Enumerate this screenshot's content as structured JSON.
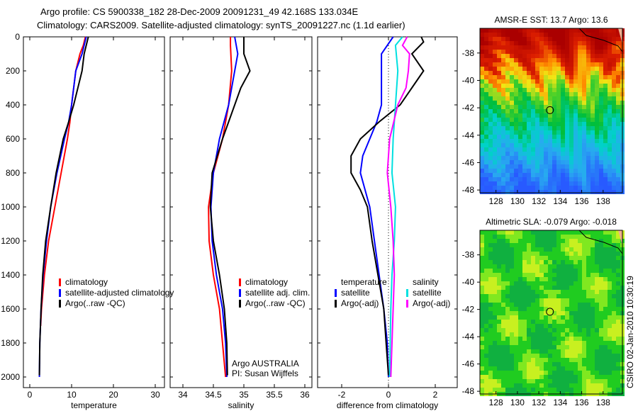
{
  "title_line1": "Argo profile: CS 5900338_182 28-Dec-2009 20091231_49 42.168S 133.034E",
  "title_line2": "Climatology: CARS2009. Satellite-adjusted climatology: synTS_20091227.nc (1.1d earlier)",
  "credit": "CSIRO 02-Jan-2010 10:30:19",
  "colors": {
    "climatology": "#ff0000",
    "satellite": "#0000ff",
    "argo": "#000000",
    "sal_satellite": "#00e0e0",
    "sal_argo": "#ff00ff"
  },
  "chart_data": [
    {
      "type": "line",
      "xlabel": "temperature",
      "ylabel": "depth",
      "xlim": [
        -2,
        32
      ],
      "ylim": [
        0,
        2050
      ],
      "xticks": [
        0,
        10,
        20,
        30
      ],
      "yticks": [
        0,
        200,
        400,
        600,
        800,
        1000,
        1200,
        1400,
        1600,
        1800,
        2000
      ],
      "legend": [
        "climatology",
        "satellite-adjusted climatology",
        "Argo(..raw -QC)"
      ],
      "series": [
        {
          "name": "climatology",
          "color": "#ff0000",
          "depth": [
            0,
            50,
            100,
            200,
            400,
            500,
            600,
            800,
            1000,
            1200,
            1400,
            1600,
            1700
          ],
          "values": [
            13.3,
            12.8,
            12,
            11,
            10,
            9.6,
            9,
            7.5,
            6,
            4.5,
            3.5,
            2.8,
            2.6
          ]
        },
        {
          "name": "satellite-adjusted climatology",
          "color": "#0000ff",
          "depth": [
            0,
            100,
            200,
            400,
            500,
            600,
            800,
            1000,
            1200,
            1400,
            1600,
            1800,
            2000
          ],
          "values": [
            13.5,
            12.5,
            11,
            10,
            9.3,
            8.3,
            6.5,
            5,
            4,
            3.2,
            2.7,
            2.4,
            2.3
          ]
        },
        {
          "name": "Argo(..raw -QC)",
          "color": "#000000",
          "depth": [
            0,
            50,
            100,
            200,
            300,
            400,
            500,
            600,
            800,
            1000,
            1200,
            1400,
            1600,
            1800,
            1990
          ],
          "values": [
            14,
            13.5,
            13,
            12.5,
            11.5,
            10.5,
            9.3,
            8,
            6.3,
            5,
            3.8,
            3.1,
            2.7,
            2.4,
            2.3
          ]
        }
      ]
    },
    {
      "type": "line",
      "xlabel": "salinity",
      "ylabel": "depth",
      "xlim": [
        33.8,
        36.1
      ],
      "ylim": [
        0,
        2050
      ],
      "xticks": [
        34,
        34.5,
        35,
        35.5,
        36
      ],
      "legend": [
        "climatology",
        "satellite adj. clim.",
        "Argo(..raw -QC)"
      ],
      "annotation": [
        "Argo AUSTRALIA",
        "PI: Susan Wijffels"
      ],
      "series": [
        {
          "name": "climatology",
          "color": "#ff0000",
          "depth": [
            0,
            50,
            200,
            400,
            600,
            800,
            1000,
            1200,
            1400,
            1600,
            1800,
            2000
          ],
          "values": [
            34.78,
            34.78,
            34.8,
            34.75,
            34.65,
            34.5,
            34.42,
            34.43,
            34.5,
            34.6,
            34.65,
            34.7
          ]
        },
        {
          "name": "satellite adj. clim.",
          "color": "#0000ff",
          "depth": [
            0,
            100,
            200,
            400,
            600,
            800,
            1000,
            1200,
            1400,
            1600,
            1800,
            2000
          ],
          "values": [
            34.85,
            34.9,
            34.85,
            34.75,
            34.6,
            34.5,
            34.46,
            34.48,
            34.55,
            34.65,
            34.7,
            34.72
          ]
        },
        {
          "name": "Argo(..raw -QC)",
          "color": "#000000",
          "depth": [
            0,
            100,
            200,
            300,
            400,
            500,
            600,
            800,
            1000,
            1200,
            1400,
            1600,
            1800,
            1990
          ],
          "values": [
            35,
            35,
            35.1,
            34.95,
            34.85,
            34.75,
            34.65,
            34.48,
            34.45,
            34.5,
            34.6,
            34.68,
            34.72,
            34.73
          ]
        }
      ]
    },
    {
      "type": "line",
      "xlabel": "difference from climatology",
      "ylabel": "depth",
      "xlim": [
        -3,
        3
      ],
      "ylim": [
        0,
        2050
      ],
      "xticks": [
        -2,
        0,
        2
      ],
      "legend_temp": [
        "temperature",
        "satellite",
        "Argo(-adj)"
      ],
      "legend_sal": [
        "salinity",
        "satellite",
        "Argo(-adj)"
      ],
      "series": [
        {
          "name": "temperature satellite",
          "color": "#0000ff",
          "depth": [
            0,
            100,
            200,
            400,
            500,
            600,
            700,
            800,
            900,
            1000,
            1200,
            1400,
            1600,
            1800,
            2000
          ],
          "values": [
            0.2,
            -0.3,
            -0.3,
            -0.3,
            -0.5,
            -0.8,
            -1.1,
            -1.2,
            -1,
            -0.8,
            -0.6,
            -0.4,
            -0.2,
            -0.05,
            0
          ]
        },
        {
          "name": "temperature Argo(-adj)",
          "color": "#000000",
          "depth": [
            0,
            30,
            100,
            200,
            300,
            400,
            500,
            600,
            700,
            800,
            900,
            1000,
            1200,
            1400,
            1600,
            1800,
            1990
          ],
          "values": [
            1.4,
            1.5,
            1,
            1.5,
            1,
            0.5,
            -0.4,
            -1.2,
            -1.6,
            -1.6,
            -1.2,
            -0.9,
            -0.7,
            -0.45,
            -0.2,
            -0.1,
            0
          ]
        },
        {
          "name": "salinity satellite",
          "color": "#00e0e0",
          "depth": [
            0,
            50,
            200,
            400,
            600,
            800,
            1000,
            1200,
            1400,
            1600,
            2000
          ],
          "values": [
            0.6,
            0.3,
            0.4,
            0.3,
            0.2,
            0.15,
            0.3,
            0.25,
            0.15,
            0.1,
            0.05
          ]
        },
        {
          "name": "salinity Argo(-adj)",
          "color": "#ff00ff",
          "depth": [
            0,
            50,
            100,
            200,
            300,
            400,
            600,
            800,
            1000,
            1200,
            1400,
            1600,
            2000
          ],
          "values": [
            0.8,
            0.6,
            0.9,
            0.85,
            0.75,
            0.4,
            0.05,
            -0.05,
            0.1,
            0.2,
            0.25,
            0.2,
            0.1
          ]
        }
      ]
    },
    {
      "type": "heatmap",
      "title": "AMSR-E SST: 13.7 Argo: 13.6",
      "xticks": [
        128,
        130,
        132,
        134,
        136,
        138
      ],
      "yticks": [
        -38,
        -40,
        -42,
        -44,
        -46,
        -48
      ],
      "xlim": [
        126.5,
        139.8
      ],
      "ylim": [
        -48.2,
        -36.2
      ],
      "marker": {
        "lon": 133.034,
        "lat": -42.168
      }
    },
    {
      "type": "heatmap",
      "title": "Altimetric SLA: -0.079 Argo: -0.018",
      "xticks": [
        128,
        130,
        132,
        134,
        136,
        138
      ],
      "yticks": [
        -38,
        -40,
        -42,
        -44,
        -46,
        -48
      ],
      "xlim": [
        126.5,
        139.8
      ],
      "ylim": [
        -48.2,
        -36.2
      ],
      "marker": {
        "lon": 133.034,
        "lat": -42.168
      }
    }
  ]
}
